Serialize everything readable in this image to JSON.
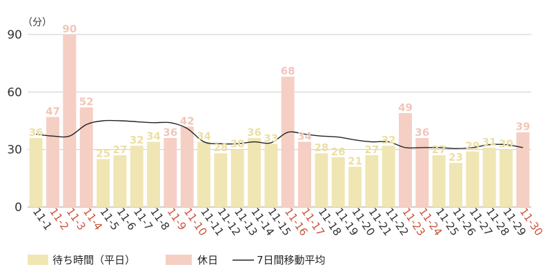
{
  "chart_data": {
    "type": "bar",
    "unit_label": "（分）",
    "yticks": [
      0,
      30,
      60,
      90
    ],
    "ylim": [
      0,
      90
    ],
    "grid": true,
    "categories": [
      "11-1",
      "11-2",
      "11-3",
      "11-4",
      "11-5",
      "11-6",
      "11-7",
      "11-8",
      "11-9",
      "11-10",
      "11-11",
      "11-12",
      "11-13",
      "11-14",
      "11-15",
      "11-16",
      "11-17",
      "11-18",
      "11-19",
      "11-20",
      "11-21",
      "11-22",
      "11-23",
      "11-24",
      "11-25",
      "11-26",
      "11-27",
      "11-28",
      "11-29",
      "11-30"
    ],
    "values": [
      36,
      47,
      90,
      52,
      25,
      27,
      32,
      34,
      36,
      42,
      34,
      28,
      30,
      36,
      33,
      68,
      34,
      28,
      26,
      21,
      27,
      32,
      49,
      36,
      27,
      23,
      29,
      31,
      30,
      39
    ],
    "holiday": [
      false,
      true,
      true,
      true,
      false,
      false,
      false,
      false,
      true,
      true,
      false,
      false,
      false,
      false,
      false,
      true,
      true,
      false,
      false,
      false,
      false,
      false,
      true,
      true,
      false,
      false,
      false,
      false,
      false,
      true
    ],
    "moving_average": [
      38,
      37,
      37,
      43,
      45,
      45,
      44.5,
      44,
      44,
      41,
      34,
      33,
      33,
      34,
      33.5,
      39,
      38,
      37,
      36.5,
      35,
      34,
      34,
      31,
      31,
      31,
      30.5,
      31,
      32.5,
      32.5,
      31
    ],
    "colors": {
      "weekday_bar": "#f0e6b4",
      "holiday_bar": "#f5cfc4",
      "weekday_label": "#ecdfa3",
      "holiday_label": "#f2c5b8",
      "weekday_tick": "#333333",
      "holiday_tick": "#c8553d",
      "line": "#222222",
      "grid": "#cccccc"
    },
    "legend": {
      "placement": "bottom-left",
      "weekday": "待ち時間（平日）",
      "holiday": "休日",
      "line": "7日間移動平均"
    }
  }
}
